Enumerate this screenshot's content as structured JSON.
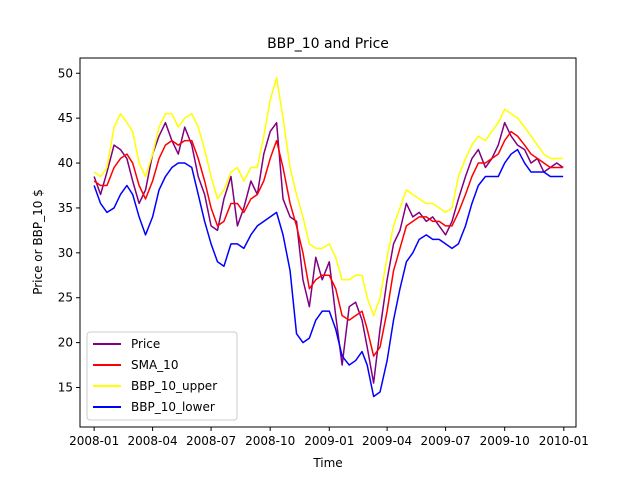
{
  "chart_data": {
    "type": "line",
    "title": "BBP_10 and Price",
    "xlabel": "Time",
    "ylabel": "Price or BBP_10 $",
    "xlim": [
      "2007-12-10",
      "2010-01-20"
    ],
    "ylim": [
      10.6,
      51.7
    ],
    "x_ticks": [
      {
        "date": "2008-01-01",
        "label": "2008-01"
      },
      {
        "date": "2008-04-01",
        "label": "2008-04"
      },
      {
        "date": "2008-07-01",
        "label": "2008-07"
      },
      {
        "date": "2008-10-01",
        "label": "2008-10"
      },
      {
        "date": "2009-01-01",
        "label": "2009-01"
      },
      {
        "date": "2009-04-01",
        "label": "2009-04"
      },
      {
        "date": "2009-07-01",
        "label": "2009-07"
      },
      {
        "date": "2009-10-01",
        "label": "2009-10"
      },
      {
        "date": "2010-01-01",
        "label": "2010-01"
      }
    ],
    "y_ticks": [
      15,
      20,
      25,
      30,
      35,
      40,
      45,
      50
    ],
    "grid": false,
    "legend": "lower-left",
    "x": [
      "2008-01-01",
      "2008-01-11",
      "2008-01-21",
      "2008-02-01",
      "2008-02-11",
      "2008-02-21",
      "2008-03-01",
      "2008-03-11",
      "2008-03-21",
      "2008-04-01",
      "2008-04-11",
      "2008-04-21",
      "2008-05-01",
      "2008-05-11",
      "2008-05-21",
      "2008-06-01",
      "2008-06-11",
      "2008-06-21",
      "2008-07-01",
      "2008-07-11",
      "2008-07-21",
      "2008-08-01",
      "2008-08-11",
      "2008-08-21",
      "2008-09-01",
      "2008-09-11",
      "2008-09-21",
      "2008-10-01",
      "2008-10-11",
      "2008-10-21",
      "2008-11-01",
      "2008-11-11",
      "2008-11-21",
      "2008-12-01",
      "2008-12-11",
      "2008-12-21",
      "2009-01-01",
      "2009-01-11",
      "2009-01-21",
      "2009-02-01",
      "2009-02-11",
      "2009-02-21",
      "2009-03-01",
      "2009-03-11",
      "2009-03-21",
      "2009-04-01",
      "2009-04-11",
      "2009-04-21",
      "2009-05-01",
      "2009-05-11",
      "2009-05-21",
      "2009-06-01",
      "2009-06-11",
      "2009-06-21",
      "2009-07-01",
      "2009-07-11",
      "2009-07-21",
      "2009-08-01",
      "2009-08-11",
      "2009-08-21",
      "2009-09-01",
      "2009-09-11",
      "2009-09-21",
      "2009-10-01",
      "2009-10-11",
      "2009-10-21",
      "2009-11-01",
      "2009-11-11",
      "2009-11-21",
      "2009-12-01",
      "2009-12-11",
      "2009-12-21",
      "2009-12-31"
    ],
    "series": [
      {
        "name": "Price",
        "color": "#800080",
        "values": [
          38.5,
          36.5,
          39.0,
          42.0,
          41.5,
          40.5,
          38.0,
          35.5,
          37.0,
          41.0,
          43.0,
          44.5,
          42.5,
          41.0,
          44.0,
          42.0,
          38.5,
          36.5,
          33.0,
          32.5,
          36.0,
          38.5,
          33.0,
          35.0,
          38.0,
          36.5,
          41.0,
          43.5,
          44.5,
          36.0,
          34.0,
          33.5,
          27.0,
          24.0,
          29.5,
          27.0,
          29.0,
          23.0,
          17.5,
          24.0,
          24.5,
          22.5,
          19.5,
          15.5,
          21.5,
          27.0,
          31.0,
          32.5,
          35.5,
          34.0,
          34.5,
          33.5,
          34.0,
          33.0,
          32.0,
          33.5,
          36.0,
          38.5,
          40.5,
          41.5,
          39.5,
          40.5,
          42.0,
          44.5,
          43.0,
          42.0,
          41.5,
          40.0,
          40.5,
          39.0,
          39.5,
          40.0,
          39.5
        ]
      },
      {
        "name": "SMA_10",
        "color": "#ff0000",
        "values": [
          38.0,
          37.5,
          37.5,
          39.5,
          40.5,
          41.0,
          40.0,
          37.5,
          36.0,
          38.0,
          40.5,
          42.0,
          42.5,
          42.0,
          42.5,
          42.5,
          40.5,
          38.0,
          35.0,
          33.0,
          33.5,
          35.5,
          35.5,
          34.5,
          36.0,
          36.5,
          38.0,
          40.5,
          42.5,
          39.5,
          35.5,
          33.0,
          30.0,
          26.0,
          27.0,
          27.5,
          27.5,
          26.0,
          23.0,
          22.5,
          23.0,
          23.5,
          21.5,
          18.5,
          19.5,
          23.5,
          28.0,
          30.5,
          33.0,
          33.5,
          34.0,
          34.0,
          33.5,
          33.5,
          33.0,
          33.0,
          34.5,
          36.5,
          38.5,
          40.0,
          40.0,
          40.5,
          41.0,
          42.5,
          43.5,
          43.0,
          42.0,
          41.0,
          40.5,
          40.0,
          39.5,
          39.5,
          39.5
        ]
      },
      {
        "name": "BBP_10_upper",
        "color": "#ffff00",
        "values": [
          39.0,
          38.5,
          39.5,
          44.0,
          45.5,
          44.5,
          43.5,
          40.0,
          38.5,
          41.0,
          44.0,
          45.5,
          45.5,
          44.0,
          45.0,
          45.5,
          44.0,
          41.5,
          38.5,
          36.0,
          37.0,
          39.0,
          39.5,
          38.0,
          39.5,
          39.5,
          43.0,
          47.0,
          49.5,
          45.0,
          39.5,
          36.5,
          34.0,
          31.0,
          30.5,
          30.5,
          31.0,
          29.5,
          27.0,
          27.0,
          27.5,
          27.5,
          25.0,
          23.0,
          25.0,
          29.5,
          33.0,
          35.0,
          37.0,
          36.5,
          36.0,
          35.5,
          35.5,
          35.0,
          34.5,
          35.0,
          38.5,
          40.5,
          42.0,
          43.0,
          42.5,
          43.5,
          44.5,
          46.0,
          45.5,
          45.0,
          44.0,
          43.0,
          42.0,
          41.0,
          40.5,
          40.5,
          40.5
        ]
      },
      {
        "name": "BBP_10_lower",
        "color": "#0000ff",
        "values": [
          37.5,
          35.5,
          34.5,
          35.0,
          36.5,
          37.5,
          36.5,
          34.0,
          32.0,
          34.0,
          37.0,
          38.5,
          39.5,
          40.0,
          40.0,
          39.5,
          36.5,
          33.5,
          31.0,
          29.0,
          28.5,
          31.0,
          31.0,
          30.5,
          32.0,
          33.0,
          33.5,
          34.0,
          34.5,
          32.0,
          28.0,
          21.0,
          20.0,
          20.5,
          22.5,
          23.5,
          23.5,
          21.5,
          18.5,
          17.5,
          18.0,
          19.0,
          17.5,
          14.0,
          14.5,
          18.0,
          22.5,
          26.0,
          29.0,
          30.0,
          31.5,
          32.0,
          31.5,
          31.5,
          31.0,
          30.5,
          31.0,
          33.0,
          35.5,
          37.5,
          38.5,
          38.5,
          38.5,
          40.0,
          41.0,
          41.5,
          40.0,
          39.0,
          39.0,
          39.0,
          38.5,
          38.5,
          38.5
        ]
      }
    ]
  }
}
